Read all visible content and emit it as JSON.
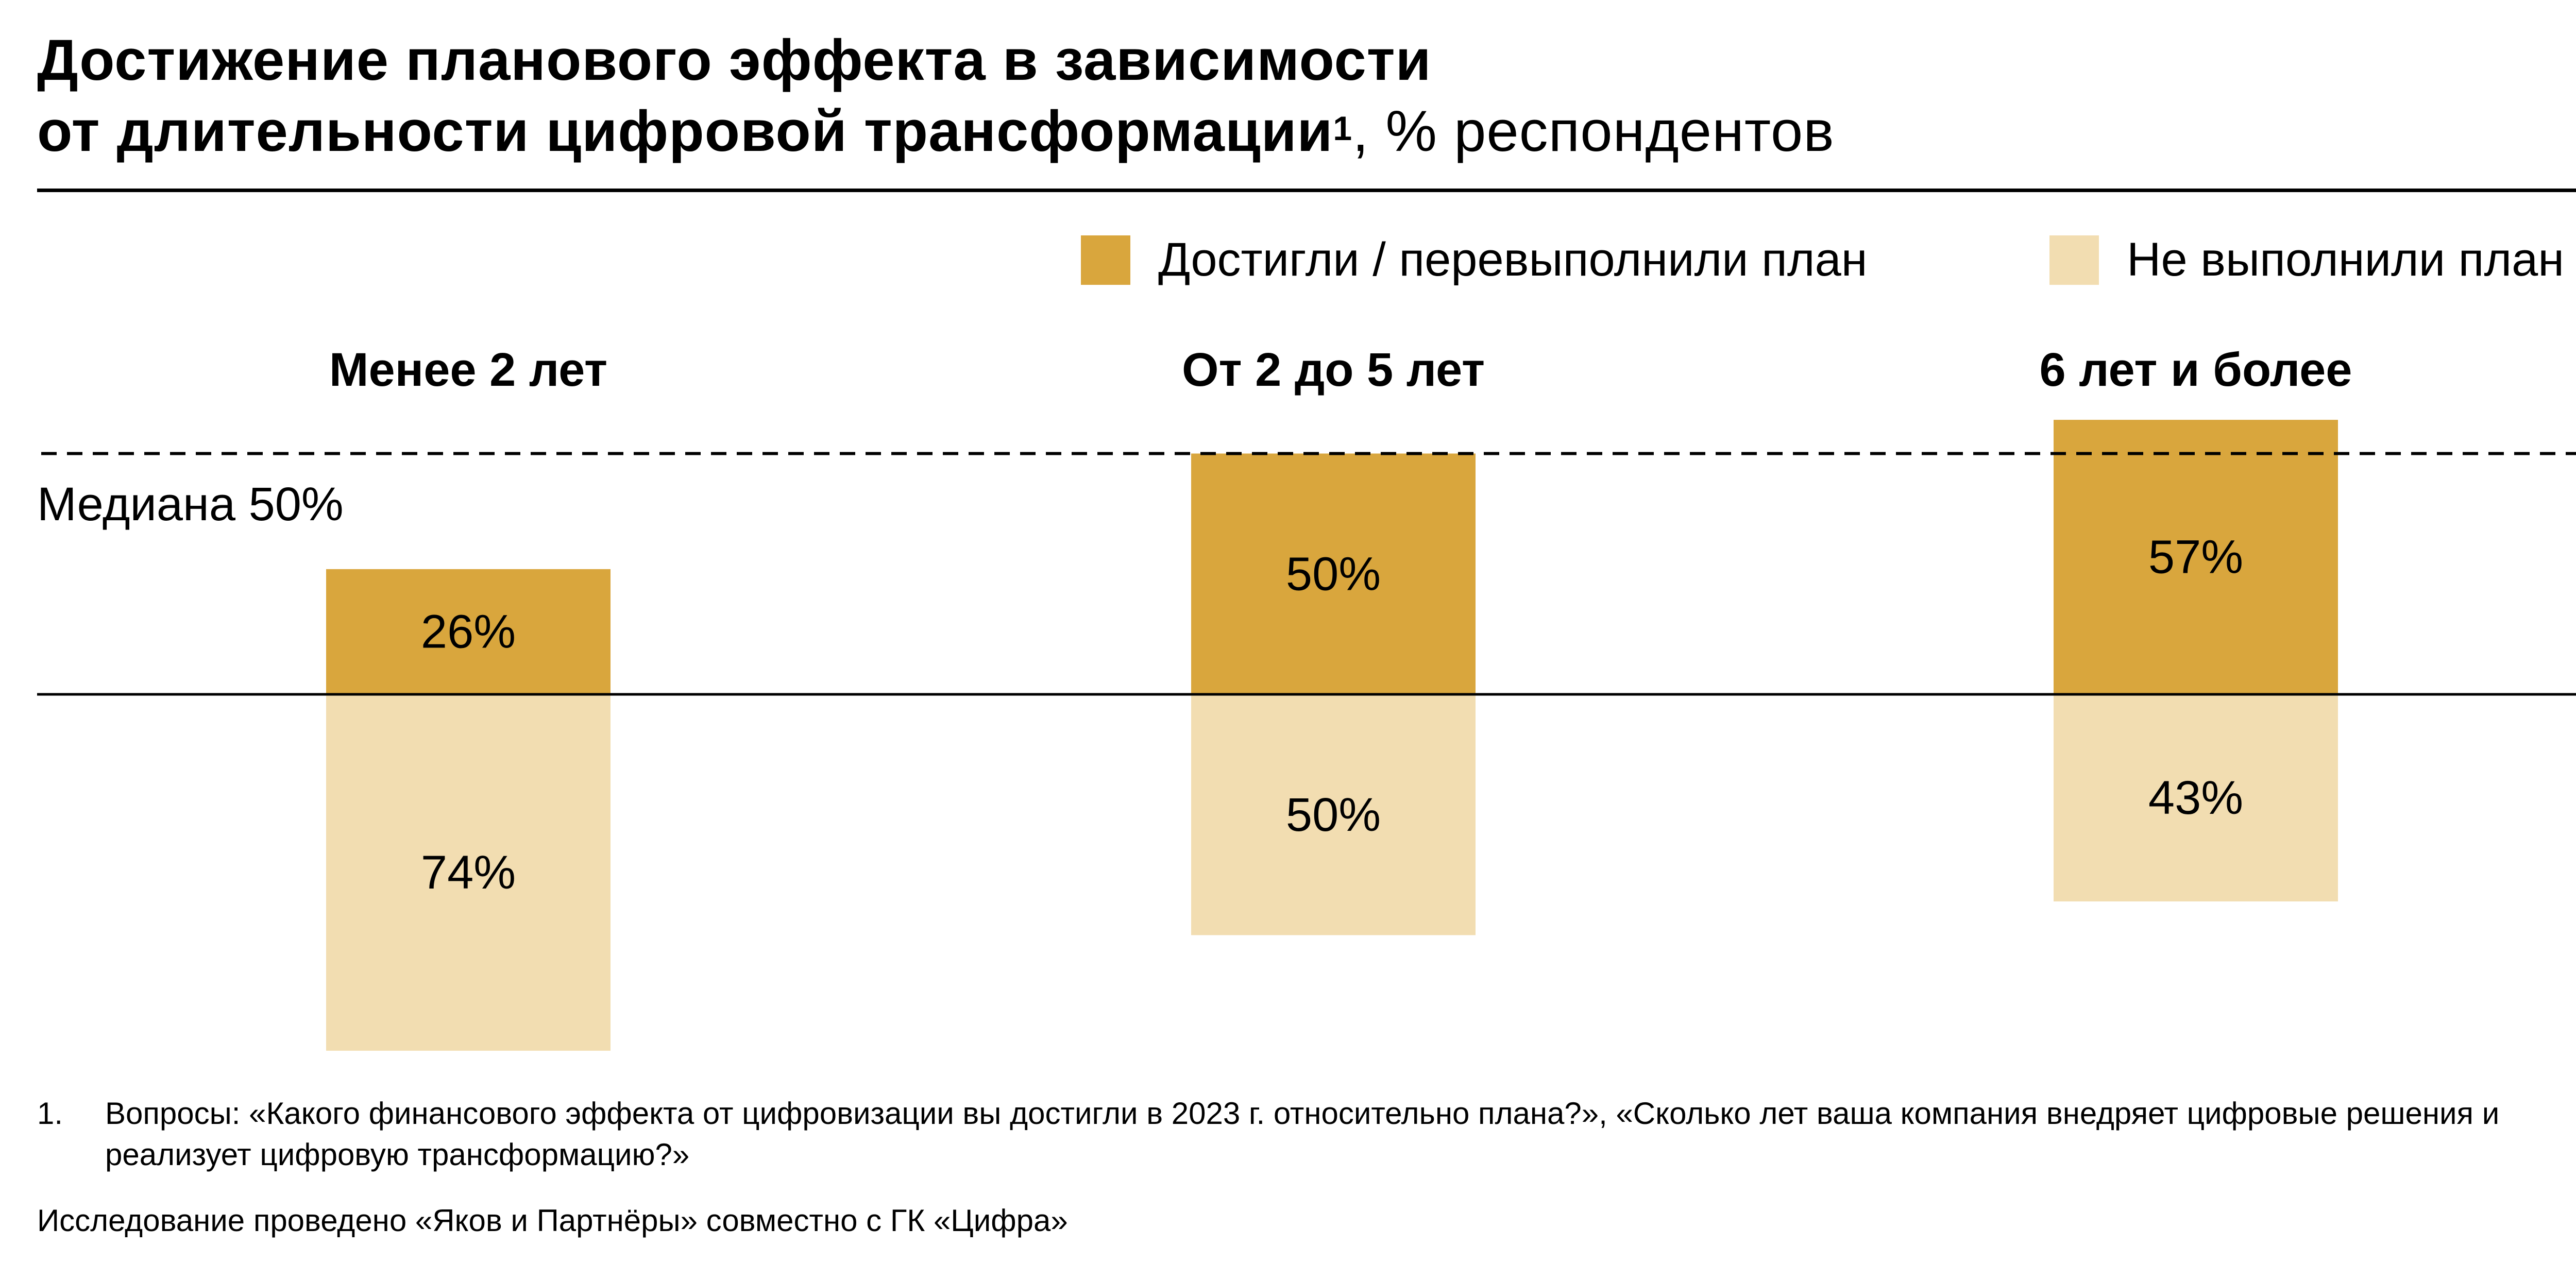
{
  "title": {
    "line1": "Достижение планового эффекта в зависимости",
    "line2_bold": "от длительности цифровой трансформации",
    "footnote_marker": "1",
    "line2_rest": ", % респондентов"
  },
  "legend": {
    "achieved": "Достигли /  перевыполнили план",
    "not_achieved": "Не выполнили план"
  },
  "colors": {
    "achieved": "#D9A63D",
    "not_achieved": "#F2DDB1"
  },
  "median_label": "Медиана 50%",
  "chart_data": {
    "type": "bar",
    "stacking": "diverging",
    "categories": [
      "Менее 2 лет",
      "От 2 до 5 лет",
      "6 лет и более"
    ],
    "series": [
      {
        "name": "Достигли /  перевыполнили план",
        "values": [
          26,
          50,
          57
        ],
        "labels": [
          "26%",
          "50%",
          "57%"
        ]
      },
      {
        "name": "Не выполнили план",
        "values": [
          74,
          50,
          43
        ],
        "labels": [
          "74%",
          "50%",
          "43%"
        ]
      }
    ],
    "median_line_value": 50,
    "legend_position": "top-right",
    "grid": false
  },
  "footnotes": {
    "n1_number": "1.",
    "n1_text": "Вопросы: «Какого финансового эффекта от цифровизации вы достигли в 2023 г. относительно плана?», «Сколько лет ваша компания внедряет цифровые решения и реализует цифровую трансформацию?»",
    "source": "Исследование проведено «Яков и Партнёры» совместно с ГК «Цифра»"
  }
}
